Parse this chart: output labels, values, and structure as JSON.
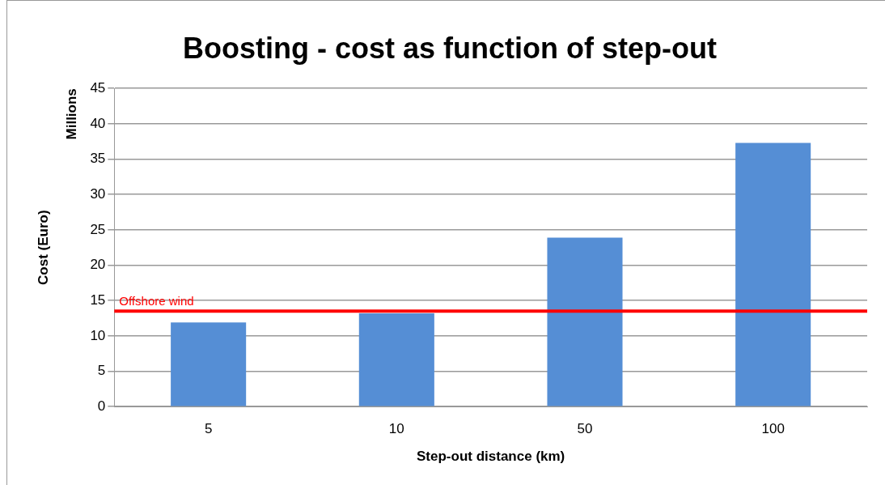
{
  "chart_data": {
    "type": "bar",
    "title": "Boosting - cost as function of step-out",
    "xlabel": "Step-out distance (km)",
    "ylabel": "Cost (Euro)",
    "annotations": [
      "Millions"
    ],
    "categories": [
      "5",
      "10",
      "50",
      "100"
    ],
    "values": [
      11.9,
      13.2,
      23.9,
      37.3
    ],
    "color": "#558ed5",
    "ylim": [
      0,
      45
    ],
    "yticks": [
      0,
      5,
      10,
      15,
      20,
      25,
      30,
      35,
      40,
      45
    ],
    "grid": "y",
    "ref_lines": [
      {
        "axis": "y",
        "value": 13.5,
        "label": "Offshore wind",
        "color": "#ff0000"
      }
    ]
  }
}
